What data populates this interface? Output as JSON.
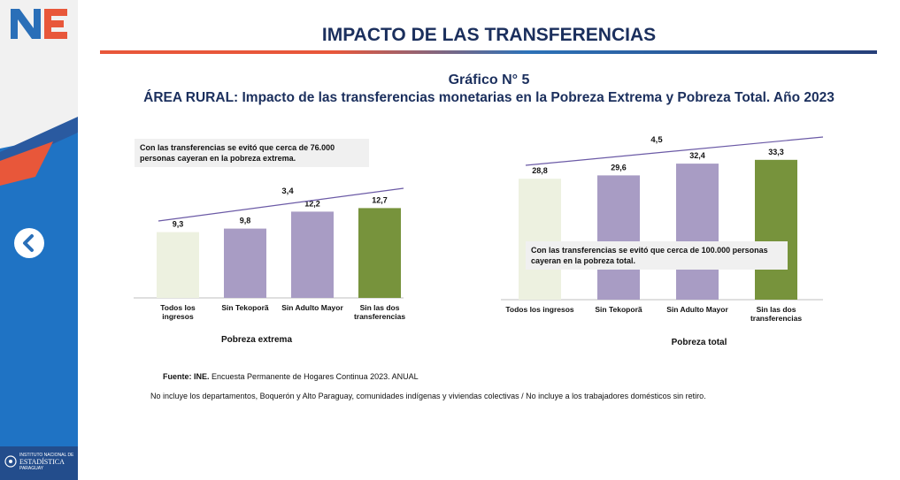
{
  "header": {
    "logo_text": "NE",
    "title": "IMPACTO DE LAS TRANSFERENCIAS"
  },
  "figure": {
    "label": "Gráfico N° 5",
    "subtitle": "ÁREA RURAL: Impacto de las transferencias monetarias en la Pobreza Extrema y Pobreza Total. Año 2023"
  },
  "sidebar": {
    "back_icon": "chevron-left-icon",
    "institution_lines": [
      "INSTITUTO NACIONAL DE",
      "ESTADÍSTICA",
      "PARAGUAY"
    ]
  },
  "colors": {
    "todos": "#edf1e0",
    "tekopora": "#a89cc4",
    "adulto": "#a89cc4",
    "sin_dos": "#77933c",
    "trend_line": "#6b5aa6",
    "title": "#1b2f5d"
  },
  "chart_data": [
    {
      "type": "bar",
      "title": "Pobreza extrema",
      "categories": [
        "Todos los ingresos",
        "Sin Tekoporã",
        "Sin Adulto Mayor",
        "Sin las dos transferencias"
      ],
      "category_label_lines": [
        [
          "Todos los",
          "ingresos"
        ],
        [
          "Sin Tekoporã"
        ],
        [
          "Sin Adulto Mayor"
        ],
        [
          "Sin las dos",
          "transferencias"
        ]
      ],
      "values": [
        9.3,
        9.8,
        12.2,
        12.7
      ],
      "value_labels": [
        "9,3",
        "9,8",
        "12,2",
        "12,7"
      ],
      "ylim": [
        0,
        20
      ],
      "difference_label": "3,4",
      "note": "Con las transferencias se evitó que cerca de 76.000 personas cayeran en la pobreza extrema."
    },
    {
      "type": "bar",
      "title": "Pobreza total",
      "categories": [
        "Todos los ingresos",
        "Sin Tekoporã",
        "Sin Adulto Mayor",
        "Sin las dos transferencias"
      ],
      "category_label_lines": [
        [
          "Todos los ingresos"
        ],
        [
          "Sin Tekoporã"
        ],
        [
          "Sin Adulto Mayor"
        ],
        [
          "Sin las dos",
          "transferencias"
        ]
      ],
      "values": [
        28.8,
        29.6,
        32.4,
        33.3
      ],
      "value_labels": [
        "28,8",
        "29,6",
        "32,4",
        "33,3"
      ],
      "ylim": [
        0,
        40
      ],
      "difference_label": "4,5",
      "note": "Con las transferencias se evitó que cerca de 100.000 personas cayeran en la pobreza total."
    }
  ],
  "source": {
    "prefix": "Fuente: INE.",
    "text": "Encuesta Permanente de Hogares Continua 2023. ANUAL"
  },
  "footnote": "No incluye los departamentos, Boquerón y Alto Paraguay, comunidades indígenas y viviendas colectivas / No incluye a los trabajadores domésticos sin retiro."
}
